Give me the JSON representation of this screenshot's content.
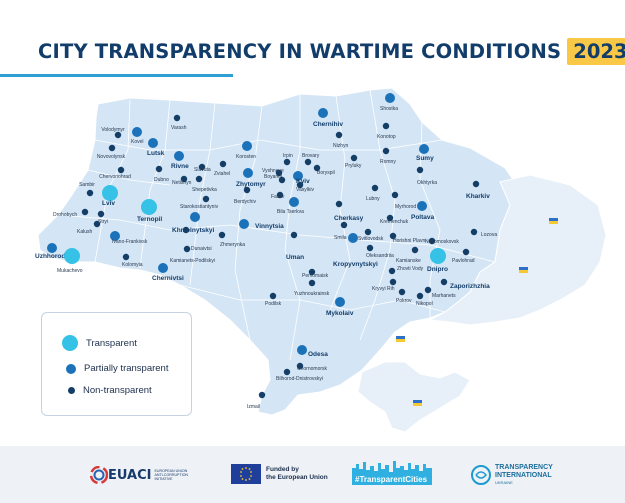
{
  "header": {
    "title": "CITY TRANSPARENCY IN WARTIME CONDITIONS",
    "year": "2023"
  },
  "legend": {
    "transparent": "Transparent",
    "partial": "Partially transparent",
    "non": "Non-transparent"
  },
  "colors": {
    "transparent": "#35c2e6",
    "partial": "#1b72b9",
    "non": "#153e66",
    "map_fill": "#d4e5f5",
    "occupied_fill": "#e7eff8",
    "border": "#ffffff",
    "title": "#123d6a",
    "accent": "#f8c846"
  },
  "cities": [
    {
      "name": "Volodymyr",
      "status": "non"
    },
    {
      "name": "Kovel",
      "status": "partial"
    },
    {
      "name": "Novovolynsk",
      "status": "non"
    },
    {
      "name": "Lutsk",
      "status": "partial"
    },
    {
      "name": "Chervonohrad",
      "status": "non"
    },
    {
      "name": "Sambir",
      "status": "non"
    },
    {
      "name": "Drohobych",
      "status": "non"
    },
    {
      "name": "Lviv",
      "status": "transparent"
    },
    {
      "name": "Stryi",
      "status": "non"
    },
    {
      "name": "Kalush",
      "status": "non"
    },
    {
      "name": "Ivano-Frankivsk",
      "status": "partial"
    },
    {
      "name": "Kolomyia",
      "status": "non"
    },
    {
      "name": "Uzhhorod",
      "status": "partial"
    },
    {
      "name": "Mukachevo",
      "status": "transparent"
    },
    {
      "name": "Chernivtsi",
      "status": "partial"
    },
    {
      "name": "Ternopil",
      "status": "transparent"
    },
    {
      "name": "Varash",
      "status": "non"
    },
    {
      "name": "Rivne",
      "status": "partial"
    },
    {
      "name": "Dubno",
      "status": "non"
    },
    {
      "name": "Netishyn",
      "status": "non"
    },
    {
      "name": "Slavuta",
      "status": "non"
    },
    {
      "name": "Shepetivka",
      "status": "non"
    },
    {
      "name": "Starokostiantyniv",
      "status": "non"
    },
    {
      "name": "Khmelnytskyi",
      "status": "partial"
    },
    {
      "name": "Kamianets-Podilskyi",
      "status": "non"
    },
    {
      "name": "Dunaivtsi",
      "status": "non"
    },
    {
      "name": "Zviahel",
      "status": "non"
    },
    {
      "name": "Korosten",
      "status": "partial"
    },
    {
      "name": "Zhytomyr",
      "status": "partial"
    },
    {
      "name": "Berdychiv",
      "status": "non"
    },
    {
      "name": "Vinnytsia",
      "status": "partial"
    },
    {
      "name": "Zhmerynka",
      "status": "non"
    },
    {
      "name": "Chernihiv",
      "status": "partial"
    },
    {
      "name": "Nizhyn",
      "status": "non"
    },
    {
      "name": "Shostka",
      "status": "partial"
    },
    {
      "name": "Konotop",
      "status": "non"
    },
    {
      "name": "Romny",
      "status": "non"
    },
    {
      "name": "Sumy",
      "status": "partial"
    },
    {
      "name": "Okhtyrka",
      "status": "non"
    },
    {
      "name": "Irpin",
      "status": "non"
    },
    {
      "name": "Brovary",
      "status": "non"
    },
    {
      "name": "Vyshneve",
      "status": "non"
    },
    {
      "name": "Boyarka",
      "status": "non"
    },
    {
      "name": "Kyiv",
      "status": "partial"
    },
    {
      "name": "Boryspil",
      "status": "non"
    },
    {
      "name": "Pryluky",
      "status": "non"
    },
    {
      "name": "Fastiv",
      "status": "non"
    },
    {
      "name": "Vasylkiv",
      "status": "non"
    },
    {
      "name": "Bila Tserkva",
      "status": "partial"
    },
    {
      "name": "Lubny",
      "status": "non"
    },
    {
      "name": "Myrhorod",
      "status": "non"
    },
    {
      "name": "Poltava",
      "status": "partial"
    },
    {
      "name": "Kharkiv",
      "status": "non"
    },
    {
      "name": "Cherkasy",
      "status": "non"
    },
    {
      "name": "Kremenchuk",
      "status": "non"
    },
    {
      "name": "Smila",
      "status": "non"
    },
    {
      "name": "Svitlovodsk",
      "status": "non"
    },
    {
      "name": "Horishni Plavni",
      "status": "non"
    },
    {
      "name": "Oleksandriia",
      "status": "non"
    },
    {
      "name": "Uman",
      "status": "non"
    },
    {
      "name": "Kropyvnytskyi",
      "status": "partial"
    },
    {
      "name": "Novomoskovsk",
      "status": "non"
    },
    {
      "name": "Lozova",
      "status": "non"
    },
    {
      "name": "Kamianske",
      "status": "non"
    },
    {
      "name": "Dnipro",
      "status": "transparent"
    },
    {
      "name": "Pavlohrad",
      "status": "non"
    },
    {
      "name": "Zhovti Vody",
      "status": "non"
    },
    {
      "name": "Kryvyi Rih",
      "status": "non"
    },
    {
      "name": "Zaporizhzhia",
      "status": "non"
    },
    {
      "name": "Marhanets",
      "status": "non"
    },
    {
      "name": "Pokrov",
      "status": "non"
    },
    {
      "name": "Nikopol",
      "status": "non"
    },
    {
      "name": "Pervomaisk",
      "status": "non"
    },
    {
      "name": "Yuzhnoukrainsk",
      "status": "non"
    },
    {
      "name": "Podilsk",
      "status": "non"
    },
    {
      "name": "Mykolaiv",
      "status": "partial"
    },
    {
      "name": "Odesa",
      "status": "partial"
    },
    {
      "name": "Chornomorsk",
      "status": "non"
    },
    {
      "name": "Bilhorod-Dnistrovskyi",
      "status": "non"
    },
    {
      "name": "Izmail",
      "status": "non"
    }
  ],
  "footer": {
    "euaci_name": "EUACI",
    "euaci_sub": "EUROPEAN UNION ANTI-CORRUPTION INITIATIVE",
    "eu_funded_line1": "Funded by",
    "eu_funded_line2": "the European Union",
    "hashtag": "#TransparentCities",
    "ti_line1": "TRANSPARENCY",
    "ti_line2": "INTERNATIONAL",
    "ti_sub": "UKRAINE"
  }
}
